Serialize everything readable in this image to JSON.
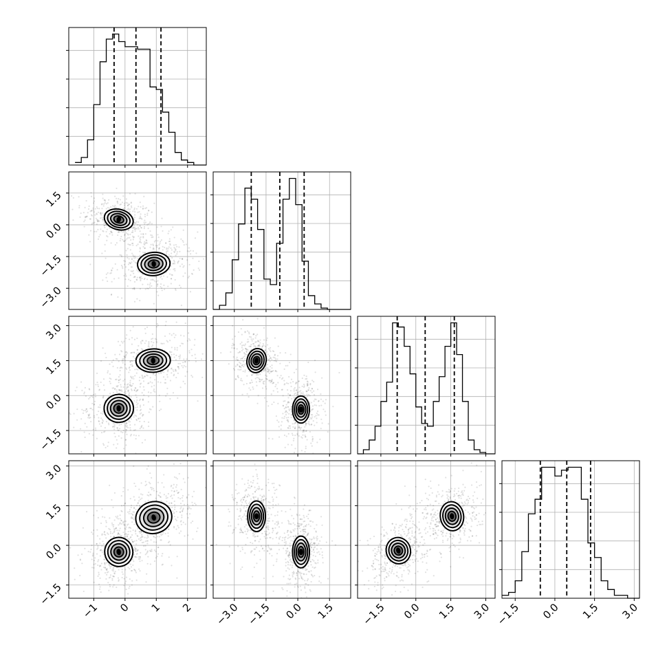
{
  "chart_data": {
    "type": "corner",
    "title": "",
    "dimensions": 4,
    "grid": true,
    "quantile_lines": true,
    "axes": [
      {
        "index": 0,
        "label": "",
        "range": [
          -1.8,
          2.6
        ],
        "ticks": [
          -1,
          0,
          1,
          2
        ],
        "tick_labels": [
          "−1",
          "0",
          "1",
          "2"
        ]
      },
      {
        "index": 1,
        "label": "",
        "range": [
          -4.0,
          2.5
        ],
        "ticks": [
          -3.0,
          -1.5,
          0.0,
          1.5
        ],
        "tick_labels": [
          "−3.0",
          "−1.5",
          "0.0",
          "1.5"
        ]
      },
      {
        "index": 2,
        "label": "",
        "range": [
          -2.5,
          3.4
        ],
        "ticks": [
          -1.5,
          0.0,
          1.5,
          3.0
        ],
        "tick_labels": [
          "−1.5",
          "0.0",
          "1.5",
          "3.0"
        ]
      },
      {
        "index": 3,
        "label": "",
        "range": [
          -2.0,
          3.2
        ],
        "ticks": [
          -1.5,
          0.0,
          1.5,
          3.0
        ],
        "tick_labels": [
          "−1.5",
          "0.0",
          "1.5",
          "3.0"
        ]
      }
    ],
    "marginals": [
      {
        "index": 0,
        "quantiles": [
          -0.35,
          0.35,
          1.15
        ],
        "bins": [
          -1.6,
          -1.4,
          -1.2,
          -1.0,
          -0.8,
          -0.6,
          -0.4,
          -0.2,
          0.0,
          0.2,
          0.4,
          0.6,
          0.8,
          1.0,
          1.2,
          1.4,
          1.6,
          1.8,
          2.0,
          2.2,
          2.4,
          2.6
        ],
        "counts": [
          2,
          6,
          20,
          48,
          82,
          100,
          104,
          98,
          94,
          94,
          92,
          92,
          62,
          60,
          42,
          26,
          10,
          4,
          2,
          0,
          0
        ]
      },
      {
        "index": 1,
        "quantiles": [
          -2.2,
          -0.85,
          0.3
        ],
        "bins": [
          -4.0,
          -3.7,
          -3.4,
          -3.1,
          -2.8,
          -2.5,
          -2.2,
          -1.9,
          -1.6,
          -1.3,
          -1.0,
          -0.7,
          -0.4,
          -0.1,
          0.2,
          0.5,
          0.8,
          1.1,
          1.4,
          1.7,
          2.0,
          2.3,
          2.5
        ],
        "counts": [
          0,
          3,
          12,
          36,
          62,
          88,
          80,
          58,
          22,
          18,
          48,
          80,
          95,
          76,
          35,
          10,
          4,
          1,
          0,
          0,
          0,
          0
        ]
      },
      {
        "index": 2,
        "quantiles": [
          -0.8,
          0.4,
          1.65
        ],
        "bins": [
          -2.5,
          -2.25,
          -2.0,
          -1.75,
          -1.5,
          -1.25,
          -1.0,
          -0.75,
          -0.5,
          -0.25,
          0.0,
          0.25,
          0.5,
          0.75,
          1.0,
          1.25,
          1.5,
          1.75,
          2.0,
          2.25,
          2.5,
          2.75,
          3.0,
          3.4
        ],
        "counts": [
          0,
          3,
          10,
          20,
          38,
          52,
          95,
          92,
          78,
          58,
          34,
          22,
          20,
          38,
          56,
          78,
          95,
          72,
          38,
          10,
          3,
          1,
          0
        ]
      },
      {
        "index": 3,
        "quantiles": [
          -0.55,
          0.45,
          1.35
        ],
        "bins": [
          -2.0,
          -1.75,
          -1.5,
          -1.25,
          -1.0,
          -0.75,
          -0.5,
          -0.25,
          0.0,
          0.25,
          0.5,
          0.75,
          1.0,
          1.25,
          1.5,
          1.75,
          2.0,
          2.25,
          2.5,
          2.75,
          3.0,
          3.2
        ],
        "counts": [
          2,
          4,
          12,
          32,
          58,
          68,
          90,
          90,
          84,
          88,
          90,
          90,
          68,
          38,
          28,
          12,
          6,
          2,
          2,
          0,
          0
        ]
      }
    ],
    "joints": [
      {
        "x_index": 0,
        "y_index": 1,
        "modes": [
          {
            "x": -0.2,
            "y": 0.25,
            "sx": 0.47,
            "sy": 0.48,
            "rho": -0.3,
            "peak": 1.0
          },
          {
            "x": 0.92,
            "y": -1.85,
            "sx": 0.52,
            "sy": 0.55,
            "rho": 0.1,
            "peak": 0.9
          }
        ]
      },
      {
        "x_index": 0,
        "y_index": 2,
        "modes": [
          {
            "x": -0.2,
            "y": -0.55,
            "sx": 0.47,
            "sy": 0.6,
            "rho": 0.05,
            "peak": 1.0
          },
          {
            "x": 0.9,
            "y": 1.5,
            "sx": 0.55,
            "sy": 0.5,
            "rho": 0.05,
            "peak": 0.95
          }
        ]
      },
      {
        "x_index": 1,
        "y_index": 2,
        "modes": [
          {
            "x": -1.95,
            "y": 1.5,
            "sx": 0.45,
            "sy": 0.52,
            "rho": -0.25,
            "peak": 0.95
          },
          {
            "x": 0.15,
            "y": -0.6,
            "sx": 0.4,
            "sy": 0.58,
            "rho": 0.0,
            "peak": 1.0
          }
        ]
      },
      {
        "x_index": 0,
        "y_index": 3,
        "modes": [
          {
            "x": -0.2,
            "y": -0.25,
            "sx": 0.45,
            "sy": 0.55,
            "rho": 0.2,
            "peak": 1.0
          },
          {
            "x": 0.92,
            "y": 1.05,
            "sx": 0.58,
            "sy": 0.6,
            "rho": 0.3,
            "peak": 0.95
          }
        ]
      },
      {
        "x_index": 1,
        "y_index": 3,
        "modes": [
          {
            "x": -1.95,
            "y": 1.1,
            "sx": 0.42,
            "sy": 0.58,
            "rho": 0.0,
            "peak": 0.9
          },
          {
            "x": 0.15,
            "y": -0.25,
            "sx": 0.4,
            "sy": 0.6,
            "rho": 0.0,
            "peak": 1.0
          }
        ]
      },
      {
        "x_index": 2,
        "y_index": 3,
        "modes": [
          {
            "x": -0.75,
            "y": -0.2,
            "sx": 0.52,
            "sy": 0.5,
            "rho": 0.35,
            "peak": 1.0
          },
          {
            "x": 1.55,
            "y": 1.1,
            "sx": 0.5,
            "sy": 0.55,
            "rho": 0.15,
            "peak": 0.95
          }
        ]
      }
    ]
  }
}
